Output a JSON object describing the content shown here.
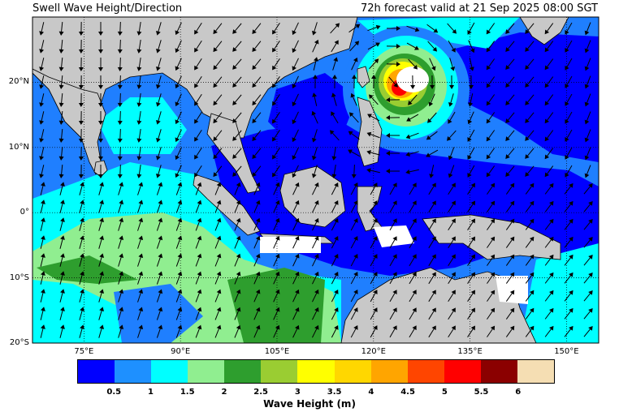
{
  "title_left": "Swell Wave Height/Direction",
  "title_right": "72h forecast valid at 21 Sep 2025 08:00 SGT",
  "map": {
    "lon_range": [
      67,
      155
    ],
    "lat_range": [
      -20,
      30
    ],
    "lat_ticks": [
      {
        "value": 20,
        "label": "20°N"
      },
      {
        "value": 10,
        "label": "10°N"
      },
      {
        "value": 0,
        "label": "0°"
      },
      {
        "value": -10,
        "label": "10°S"
      },
      {
        "value": -20,
        "label": "20°S"
      }
    ],
    "lon_ticks": [
      {
        "value": 75,
        "label": "75°E"
      },
      {
        "value": 90,
        "label": "90°E"
      },
      {
        "value": 105,
        "label": "105°E"
      },
      {
        "value": 120,
        "label": "120°E"
      },
      {
        "value": 135,
        "label": "135°E"
      },
      {
        "value": 150,
        "label": "150°E"
      }
    ],
    "gridlines": "dotted",
    "land_color": "#c8c8c8",
    "ocean_default_color": "#1f7fff"
  },
  "colorbar": {
    "title": "Wave Height (m)",
    "colors": [
      "#0000ff",
      "#1e90ff",
      "#00ffff",
      "#90ee90",
      "#2e9e2e",
      "#9acd32",
      "#ffff00",
      "#ffd700",
      "#ffa500",
      "#ff4500",
      "#ff0000",
      "#8b0000",
      "#f5deb3"
    ],
    "ticks": [
      "0.5",
      "1",
      "1.5",
      "2",
      "2.5",
      "3",
      "3.5",
      "4",
      "4.5",
      "5",
      "5.5",
      "6"
    ]
  }
}
